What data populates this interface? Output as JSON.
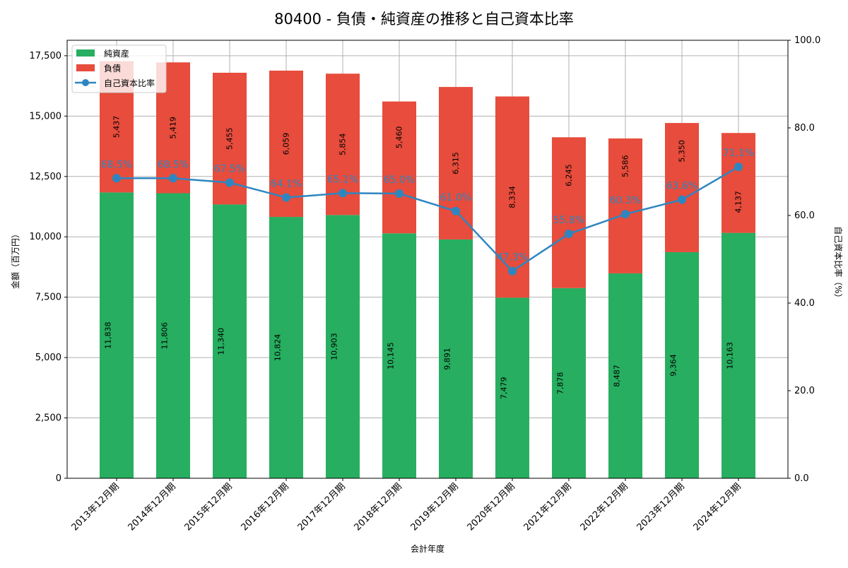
{
  "chart_data": {
    "type": "bar",
    "title": "80400 - 負債・純資産の推移と自己資本比率",
    "xlabel": "会計年度",
    "ylabel": "金額（百万円）",
    "y2label": "自己資本比率（%）",
    "categories": [
      "2013年12月期",
      "2014年12月期",
      "2015年12月期",
      "2016年12月期",
      "2017年12月期",
      "2018年12月期",
      "2019年12月期",
      "2020年12月期",
      "2021年12月期",
      "2022年12月期",
      "2023年12月期",
      "2024年12月期"
    ],
    "series": [
      {
        "name": "純資産",
        "kind": "bar",
        "color": "#27ae60",
        "values": [
          11838,
          11806,
          11340,
          10824,
          10903,
          10145,
          9891,
          7479,
          7878,
          8487,
          9364,
          10163
        ]
      },
      {
        "name": "負債",
        "kind": "bar",
        "color": "#e74c3c",
        "values": [
          5437,
          5419,
          5455,
          6059,
          5854,
          5460,
          6315,
          8334,
          6245,
          5586,
          5350,
          4137
        ]
      },
      {
        "name": "自己資本比率",
        "kind": "line",
        "color": "#2e86c1",
        "values": [
          68.5,
          68.5,
          67.5,
          64.1,
          65.1,
          65.0,
          61.0,
          47.3,
          55.8,
          60.3,
          63.6,
          71.1
        ]
      }
    ],
    "ylim": [
      0,
      18140
    ],
    "yticks": [
      0,
      2500,
      5000,
      7500,
      10000,
      12500,
      15000,
      17500
    ],
    "ytick_labels": [
      "0",
      "2,500",
      "5,000",
      "7,500",
      "10,000",
      "12,500",
      "15,000",
      "17,500"
    ],
    "y2lim": [
      0,
      100
    ],
    "y2ticks": [
      0,
      20,
      40,
      60,
      80,
      100
    ],
    "y2tick_labels": [
      "0.0",
      "20.0",
      "40.0",
      "60.0",
      "80.0",
      "100.0"
    ],
    "grid": true,
    "legend": "top-left"
  }
}
